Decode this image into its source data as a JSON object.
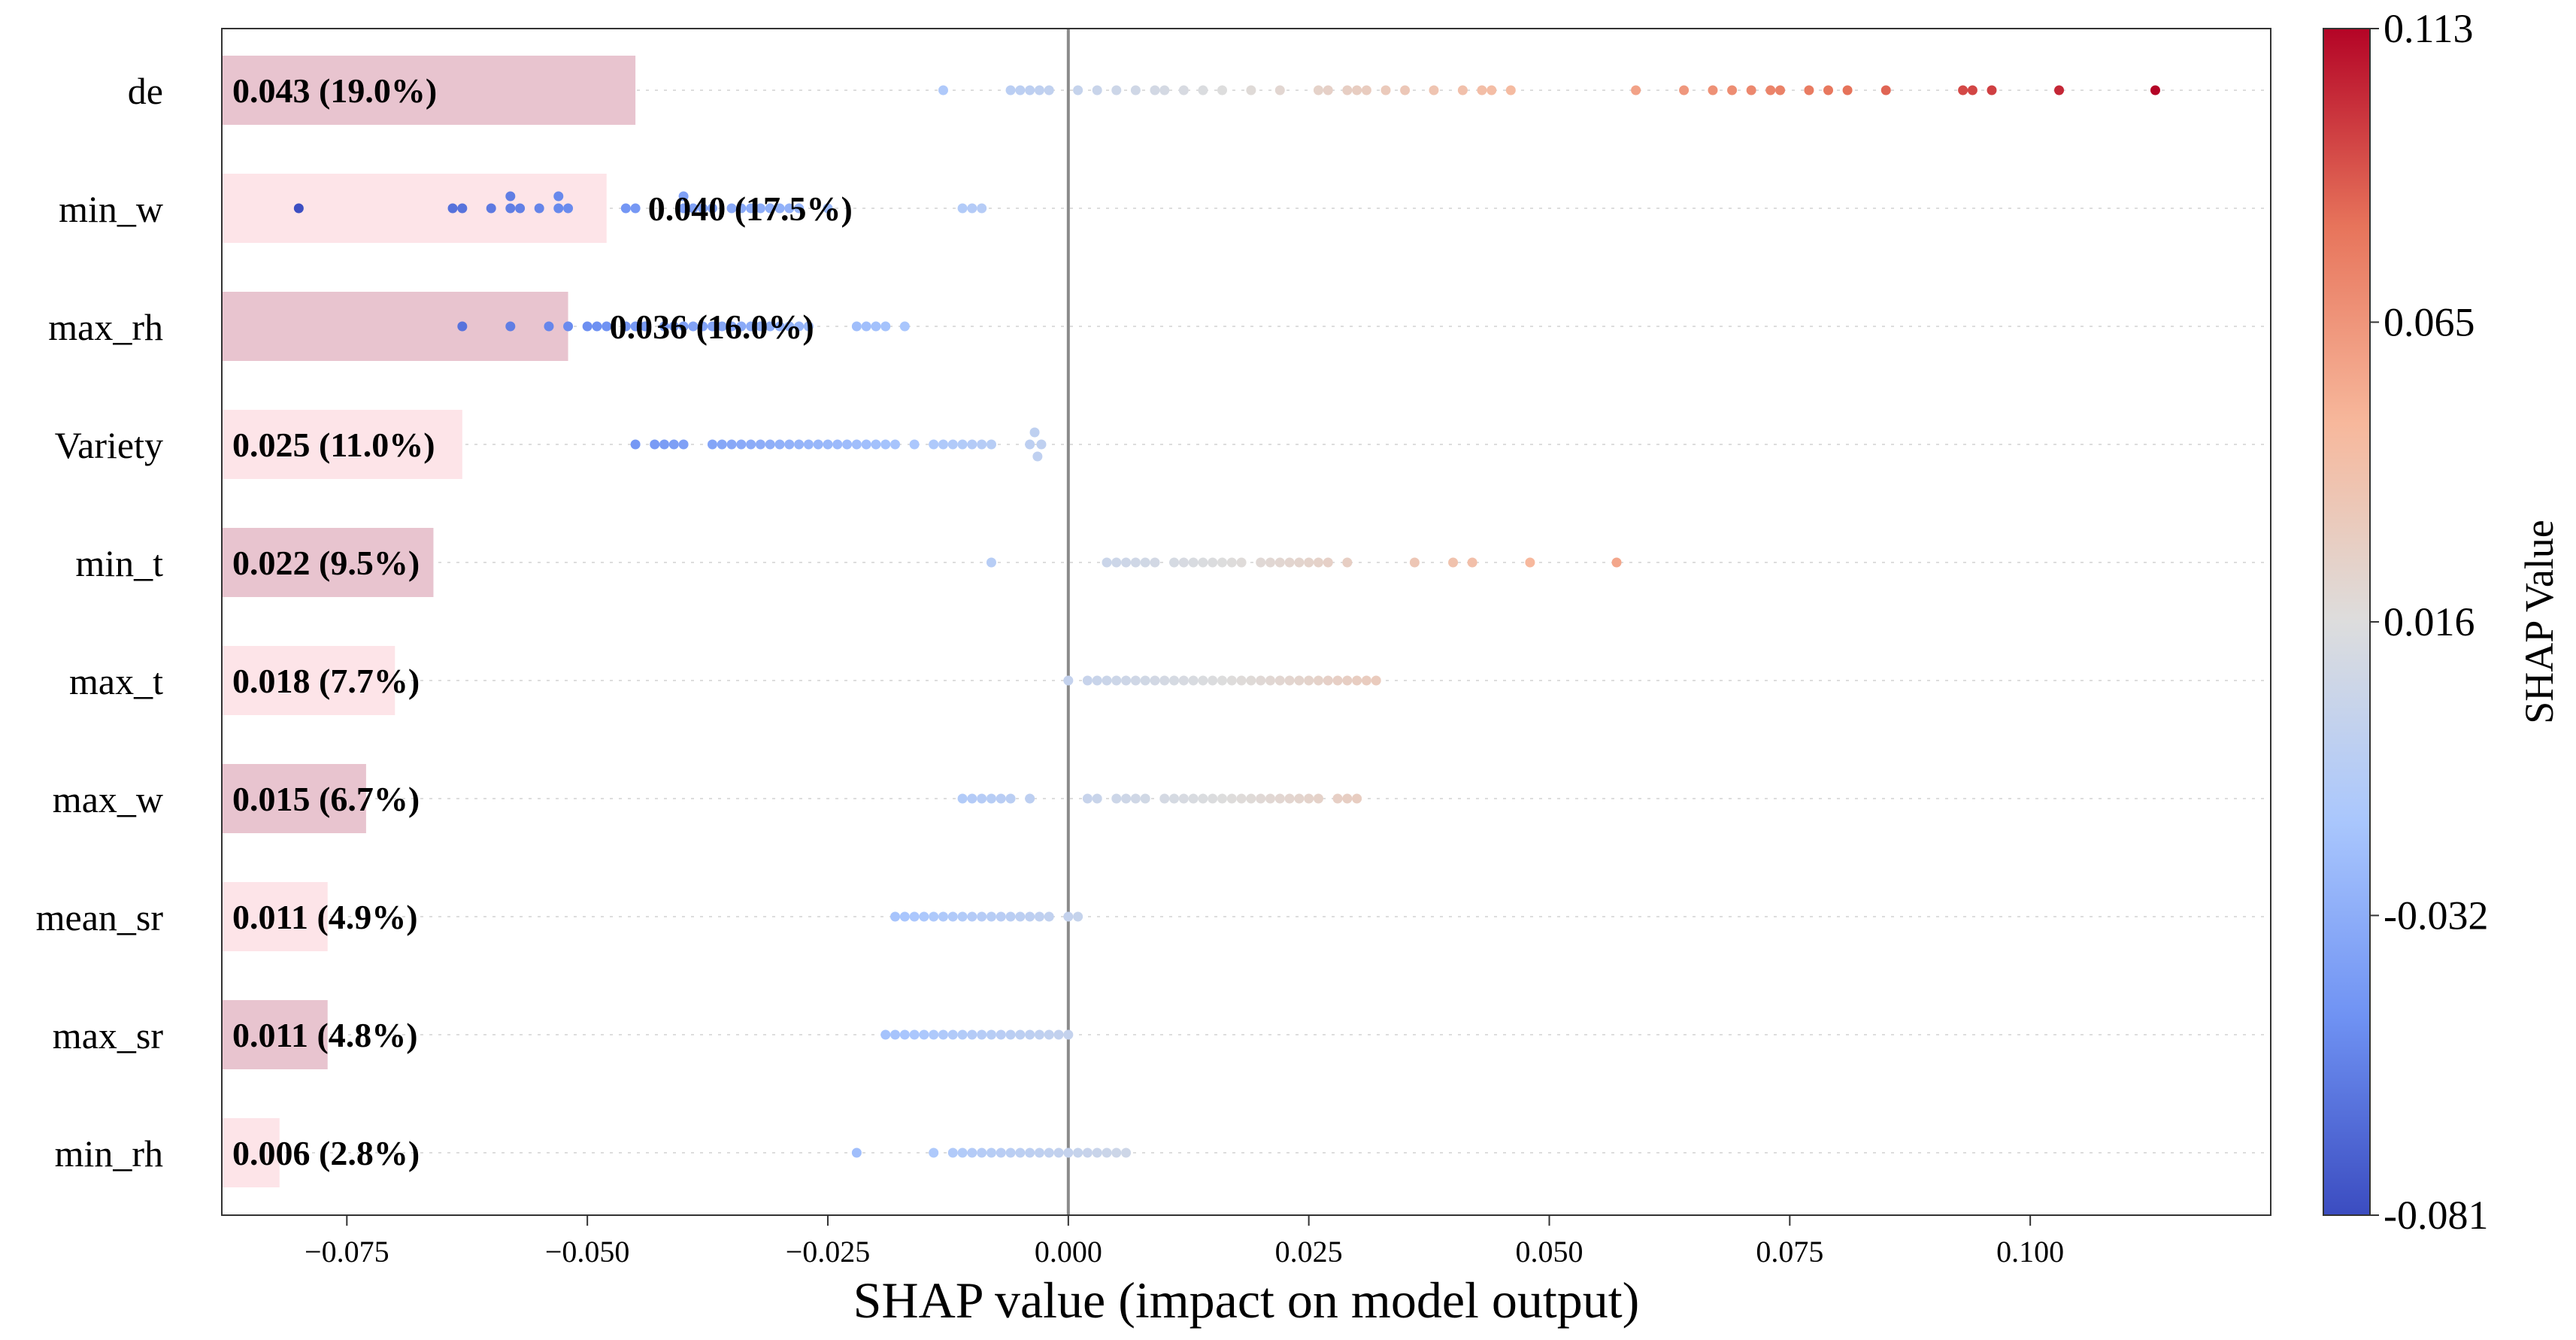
{
  "chart_data": {
    "type": "scatter",
    "subtype": "shap-beeswarm-with-mean-abs-bars",
    "xlabel": "SHAP value (impact on model output)",
    "xlim": [
      -0.088,
      0.125
    ],
    "xticks": [
      -0.075,
      -0.05,
      -0.025,
      0.0,
      0.025,
      0.05,
      0.075,
      0.1
    ],
    "xtick_labels": [
      "−0.075",
      "−0.050",
      "−0.025",
      "0.000",
      "0.025",
      "0.050",
      "0.075",
      "0.100"
    ],
    "colorbar": {
      "label": "SHAP Value",
      "min": -0.081,
      "max": 0.113,
      "tick_values": [
        0.113,
        0.065,
        0.016,
        -0.032,
        -0.081
      ],
      "tick_labels": [
        "0.113",
        "0.065",
        "0.016",
        "-0.032",
        "-0.081"
      ],
      "colors": [
        "#3b4cc0",
        "#6f92f3",
        "#aac7fd",
        "#dddddd",
        "#f7b89c",
        "#e7745b",
        "#b40426"
      ]
    },
    "bar_colors": {
      "even": "#e8c4cf",
      "odd": "#fde4e8"
    },
    "features": [
      {
        "name": "de",
        "mean_abs": 0.043,
        "label": "0.043 (19.0%)",
        "label_inside": true,
        "points": [
          -0.013,
          -0.005,
          -0.004,
          -0.003,
          -0.006,
          -0.002,
          0.001,
          0.003,
          0.005,
          0.007,
          0.009,
          0.01,
          0.012,
          0.014,
          0.016,
          0.019,
          0.022,
          0.026,
          0.027,
          0.029,
          0.03,
          0.031,
          0.033,
          0.035,
          0.038,
          0.041,
          0.043,
          0.044,
          0.046,
          0.059,
          0.064,
          0.067,
          0.069,
          0.071,
          0.073,
          0.074,
          0.077,
          0.079,
          0.081,
          0.085,
          0.093,
          0.094,
          0.096,
          0.103,
          0.113
        ]
      },
      {
        "name": "min_w",
        "mean_abs": 0.04,
        "label": "0.040 (17.5%)",
        "label_inside": false,
        "points": [
          -0.08,
          -0.063,
          -0.064,
          -0.06,
          -0.058,
          -0.058,
          -0.057,
          -0.055,
          -0.053,
          -0.052,
          -0.053,
          -0.046,
          -0.045,
          -0.04,
          -0.04,
          -0.039,
          -0.038,
          -0.037,
          -0.035,
          -0.034,
          -0.033,
          -0.032,
          -0.031,
          -0.03,
          -0.029,
          -0.028,
          -0.025,
          -0.011,
          -0.01,
          -0.009
        ]
      },
      {
        "name": "max_rh",
        "mean_abs": 0.036,
        "label": "0.036 (16.0%)",
        "label_inside": false,
        "points": [
          -0.063,
          -0.058,
          -0.054,
          -0.052,
          -0.05,
          -0.049,
          -0.048,
          -0.046,
          -0.045,
          -0.044,
          -0.042,
          -0.041,
          -0.04,
          -0.039,
          -0.038,
          -0.037,
          -0.036,
          -0.035,
          -0.034,
          -0.033,
          -0.032,
          -0.031,
          -0.03,
          -0.029,
          -0.028,
          -0.027,
          -0.022,
          -0.021,
          -0.02,
          -0.019,
          -0.017
        ]
      },
      {
        "name": "Variety",
        "mean_abs": 0.025,
        "label": "0.025 (11.0%)",
        "label_inside": true,
        "points": [
          -0.045,
          -0.043,
          -0.042,
          -0.041,
          -0.04,
          -0.037,
          -0.036,
          -0.035,
          -0.034,
          -0.033,
          -0.032,
          -0.031,
          -0.03,
          -0.029,
          -0.028,
          -0.027,
          -0.026,
          -0.025,
          -0.024,
          -0.023,
          -0.022,
          -0.021,
          -0.02,
          -0.019,
          -0.018,
          -0.016,
          -0.014,
          -0.013,
          -0.012,
          -0.011,
          -0.01,
          -0.009,
          -0.008,
          -0.004,
          -0.0035,
          -0.0032,
          -0.0028
        ]
      },
      {
        "name": "min_t",
        "mean_abs": 0.022,
        "label": "0.022 (9.5%)",
        "label_inside": true,
        "points": [
          -0.008,
          0.004,
          0.005,
          0.006,
          0.007,
          0.008,
          0.009,
          0.011,
          0.012,
          0.013,
          0.014,
          0.015,
          0.016,
          0.017,
          0.018,
          0.02,
          0.021,
          0.022,
          0.023,
          0.024,
          0.025,
          0.026,
          0.027,
          0.029,
          0.036,
          0.04,
          0.042,
          0.048,
          0.057
        ]
      },
      {
        "name": "max_t",
        "mean_abs": 0.018,
        "label": "0.018 (7.7%)",
        "label_inside": true,
        "points": [
          0.0,
          0.002,
          0.003,
          0.004,
          0.005,
          0.006,
          0.007,
          0.008,
          0.009,
          0.01,
          0.011,
          0.012,
          0.013,
          0.014,
          0.015,
          0.016,
          0.017,
          0.018,
          0.019,
          0.02,
          0.021,
          0.022,
          0.023,
          0.024,
          0.025,
          0.026,
          0.027,
          0.028,
          0.029,
          0.03,
          0.031,
          0.032
        ]
      },
      {
        "name": "max_w",
        "mean_abs": 0.015,
        "label": "0.015 (6.7%)",
        "label_inside": true,
        "points": [
          -0.011,
          -0.01,
          -0.009,
          -0.008,
          -0.007,
          -0.006,
          -0.004,
          0.002,
          0.003,
          0.005,
          0.006,
          0.007,
          0.008,
          0.01,
          0.011,
          0.012,
          0.013,
          0.014,
          0.015,
          0.016,
          0.017,
          0.018,
          0.019,
          0.02,
          0.021,
          0.022,
          0.023,
          0.024,
          0.025,
          0.026,
          0.028,
          0.029,
          0.03
        ]
      },
      {
        "name": "mean_sr",
        "mean_abs": 0.011,
        "label": "0.011 (4.9%)",
        "label_inside": true,
        "points": [
          -0.018,
          -0.017,
          -0.016,
          -0.015,
          -0.014,
          -0.013,
          -0.012,
          -0.011,
          -0.01,
          -0.009,
          -0.008,
          -0.007,
          -0.006,
          -0.005,
          -0.004,
          -0.003,
          -0.002,
          0.0,
          0.001
        ]
      },
      {
        "name": "max_sr",
        "mean_abs": 0.011,
        "label": "0.011 (4.8%)",
        "label_inside": true,
        "points": [
          -0.019,
          -0.018,
          -0.017,
          -0.016,
          -0.015,
          -0.014,
          -0.013,
          -0.012,
          -0.011,
          -0.01,
          -0.009,
          -0.008,
          -0.007,
          -0.006,
          -0.005,
          -0.004,
          -0.003,
          -0.002,
          -0.001,
          0.0
        ]
      },
      {
        "name": "min_rh",
        "mean_abs": 0.006,
        "label": "0.006 (2.8%)",
        "label_inside": true,
        "points": [
          -0.022,
          -0.014,
          -0.012,
          -0.011,
          -0.01,
          -0.009,
          -0.008,
          -0.007,
          -0.006,
          -0.005,
          -0.004,
          -0.003,
          -0.002,
          -0.001,
          0.0,
          0.001,
          0.002,
          0.003,
          0.004,
          0.005,
          0.006
        ]
      }
    ]
  }
}
